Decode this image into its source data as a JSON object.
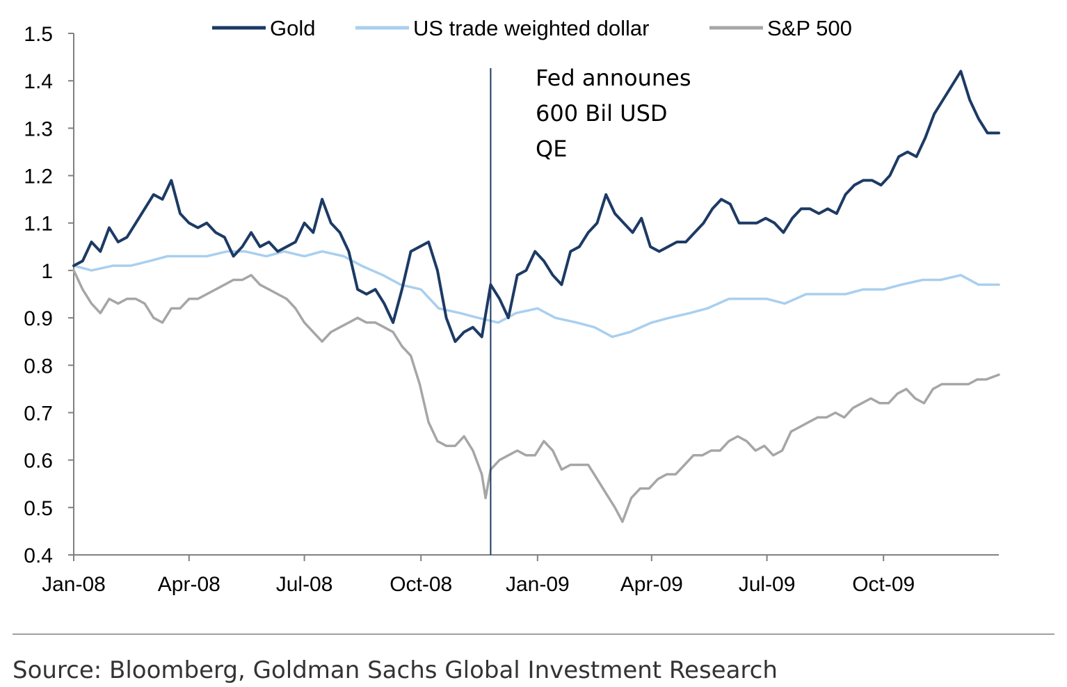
{
  "chart_data": {
    "type": "line",
    "x_ticks": [
      "Jan-08",
      "Apr-08",
      "Jul-08",
      "Oct-08",
      "Jan-09",
      "Apr-09",
      "Jul-09",
      "Oct-09"
    ],
    "y_ticks": [
      "0.4",
      "0.5",
      "0.6",
      "0.7",
      "0.8",
      "0.9",
      "1",
      "1.1",
      "1.2",
      "1.3",
      "1.4",
      "1.5"
    ],
    "ylim": [
      0.4,
      1.5
    ],
    "xlim": [
      "2008-01-01",
      "2009-12-31"
    ],
    "grid": false,
    "legend_position": "top",
    "annotation": {
      "date": "2008-11-25",
      "lines": [
        "Fed announes",
        "600 Bil USD",
        "QE"
      ]
    },
    "source": "Source: Bloomberg, Goldman Sachs Global Investment Research",
    "series": [
      {
        "name": "Gold",
        "color": "#1c3a64",
        "points": [
          [
            "2008-01-01",
            1.01
          ],
          [
            "2008-01-08",
            1.02
          ],
          [
            "2008-01-15",
            1.06
          ],
          [
            "2008-01-22",
            1.04
          ],
          [
            "2008-01-29",
            1.09
          ],
          [
            "2008-02-05",
            1.06
          ],
          [
            "2008-02-12",
            1.07
          ],
          [
            "2008-02-19",
            1.1
          ],
          [
            "2008-02-26",
            1.13
          ],
          [
            "2008-03-04",
            1.16
          ],
          [
            "2008-03-11",
            1.15
          ],
          [
            "2008-03-18",
            1.19
          ],
          [
            "2008-03-25",
            1.12
          ],
          [
            "2008-04-01",
            1.1
          ],
          [
            "2008-04-08",
            1.09
          ],
          [
            "2008-04-15",
            1.1
          ],
          [
            "2008-04-22",
            1.08
          ],
          [
            "2008-04-29",
            1.07
          ],
          [
            "2008-05-06",
            1.03
          ],
          [
            "2008-05-13",
            1.05
          ],
          [
            "2008-05-20",
            1.08
          ],
          [
            "2008-05-27",
            1.05
          ],
          [
            "2008-06-03",
            1.06
          ],
          [
            "2008-06-10",
            1.04
          ],
          [
            "2008-06-17",
            1.05
          ],
          [
            "2008-06-24",
            1.06
          ],
          [
            "2008-07-01",
            1.1
          ],
          [
            "2008-07-08",
            1.08
          ],
          [
            "2008-07-15",
            1.15
          ],
          [
            "2008-07-22",
            1.1
          ],
          [
            "2008-07-29",
            1.08
          ],
          [
            "2008-08-05",
            1.04
          ],
          [
            "2008-08-12",
            0.96
          ],
          [
            "2008-08-19",
            0.95
          ],
          [
            "2008-08-26",
            0.96
          ],
          [
            "2008-09-02",
            0.93
          ],
          [
            "2008-09-09",
            0.89
          ],
          [
            "2008-09-16",
            0.96
          ],
          [
            "2008-09-23",
            1.04
          ],
          [
            "2008-09-30",
            1.05
          ],
          [
            "2008-10-07",
            1.06
          ],
          [
            "2008-10-14",
            1.0
          ],
          [
            "2008-10-21",
            0.9
          ],
          [
            "2008-10-28",
            0.85
          ],
          [
            "2008-11-04",
            0.87
          ],
          [
            "2008-11-11",
            0.88
          ],
          [
            "2008-11-18",
            0.86
          ],
          [
            "2008-11-25",
            0.97
          ],
          [
            "2008-12-02",
            0.94
          ],
          [
            "2008-12-09",
            0.9
          ],
          [
            "2008-12-16",
            0.99
          ],
          [
            "2008-12-23",
            1.0
          ],
          [
            "2008-12-30",
            1.04
          ],
          [
            "2009-01-06",
            1.02
          ],
          [
            "2009-01-13",
            0.99
          ],
          [
            "2009-01-20",
            0.97
          ],
          [
            "2009-01-27",
            1.04
          ],
          [
            "2009-02-03",
            1.05
          ],
          [
            "2009-02-10",
            1.08
          ],
          [
            "2009-02-17",
            1.1
          ],
          [
            "2009-02-24",
            1.16
          ],
          [
            "2009-03-03",
            1.12
          ],
          [
            "2009-03-10",
            1.1
          ],
          [
            "2009-03-17",
            1.08
          ],
          [
            "2009-03-24",
            1.11
          ],
          [
            "2009-03-31",
            1.05
          ],
          [
            "2009-04-07",
            1.04
          ],
          [
            "2009-04-14",
            1.05
          ],
          [
            "2009-04-21",
            1.06
          ],
          [
            "2009-04-28",
            1.06
          ],
          [
            "2009-05-05",
            1.08
          ],
          [
            "2009-05-12",
            1.1
          ],
          [
            "2009-05-19",
            1.13
          ],
          [
            "2009-05-26",
            1.15
          ],
          [
            "2009-06-02",
            1.14
          ],
          [
            "2009-06-09",
            1.1
          ],
          [
            "2009-06-16",
            1.1
          ],
          [
            "2009-06-23",
            1.1
          ],
          [
            "2009-06-30",
            1.11
          ],
          [
            "2009-07-07",
            1.1
          ],
          [
            "2009-07-14",
            1.08
          ],
          [
            "2009-07-21",
            1.11
          ],
          [
            "2009-07-28",
            1.13
          ],
          [
            "2009-08-04",
            1.13
          ],
          [
            "2009-08-11",
            1.12
          ],
          [
            "2009-08-18",
            1.13
          ],
          [
            "2009-08-25",
            1.12
          ],
          [
            "2009-09-01",
            1.16
          ],
          [
            "2009-09-08",
            1.18
          ],
          [
            "2009-09-15",
            1.19
          ],
          [
            "2009-09-22",
            1.19
          ],
          [
            "2009-09-29",
            1.18
          ],
          [
            "2009-10-06",
            1.2
          ],
          [
            "2009-10-13",
            1.24
          ],
          [
            "2009-10-20",
            1.25
          ],
          [
            "2009-10-27",
            1.24
          ],
          [
            "2009-11-03",
            1.28
          ],
          [
            "2009-11-10",
            1.33
          ],
          [
            "2009-11-17",
            1.36
          ],
          [
            "2009-11-24",
            1.39
          ],
          [
            "2009-12-01",
            1.42
          ],
          [
            "2009-12-08",
            1.36
          ],
          [
            "2009-12-15",
            1.32
          ],
          [
            "2009-12-22",
            1.29
          ],
          [
            "2009-12-31",
            1.29
          ]
        ]
      },
      {
        "name": "US trade weighted dollar",
        "color": "#a9cfee",
        "points": [
          [
            "2008-01-01",
            1.01
          ],
          [
            "2008-01-15",
            1.0
          ],
          [
            "2008-02-01",
            1.01
          ],
          [
            "2008-02-15",
            1.01
          ],
          [
            "2008-03-01",
            1.02
          ],
          [
            "2008-03-15",
            1.03
          ],
          [
            "2008-04-01",
            1.03
          ],
          [
            "2008-04-15",
            1.03
          ],
          [
            "2008-05-01",
            1.04
          ],
          [
            "2008-05-15",
            1.04
          ],
          [
            "2008-06-01",
            1.03
          ],
          [
            "2008-06-15",
            1.04
          ],
          [
            "2008-07-01",
            1.03
          ],
          [
            "2008-07-15",
            1.04
          ],
          [
            "2008-08-01",
            1.03
          ],
          [
            "2008-08-15",
            1.01
          ],
          [
            "2008-09-01",
            0.99
          ],
          [
            "2008-09-15",
            0.97
          ],
          [
            "2008-10-01",
            0.96
          ],
          [
            "2008-10-15",
            0.92
          ],
          [
            "2008-11-01",
            0.91
          ],
          [
            "2008-11-15",
            0.9
          ],
          [
            "2008-12-01",
            0.89
          ],
          [
            "2008-12-15",
            0.91
          ],
          [
            "2009-01-01",
            0.92
          ],
          [
            "2009-01-15",
            0.9
          ],
          [
            "2009-02-01",
            0.89
          ],
          [
            "2009-02-15",
            0.88
          ],
          [
            "2009-03-01",
            0.86
          ],
          [
            "2009-03-15",
            0.87
          ],
          [
            "2009-04-01",
            0.89
          ],
          [
            "2009-04-15",
            0.9
          ],
          [
            "2009-05-01",
            0.91
          ],
          [
            "2009-05-15",
            0.92
          ],
          [
            "2009-06-01",
            0.94
          ],
          [
            "2009-06-15",
            0.94
          ],
          [
            "2009-07-01",
            0.94
          ],
          [
            "2009-07-15",
            0.93
          ],
          [
            "2009-08-01",
            0.95
          ],
          [
            "2009-08-15",
            0.95
          ],
          [
            "2009-09-01",
            0.95
          ],
          [
            "2009-09-15",
            0.96
          ],
          [
            "2009-10-01",
            0.96
          ],
          [
            "2009-10-15",
            0.97
          ],
          [
            "2009-11-01",
            0.98
          ],
          [
            "2009-11-15",
            0.98
          ],
          [
            "2009-12-01",
            0.99
          ],
          [
            "2009-12-15",
            0.97
          ],
          [
            "2009-12-31",
            0.97
          ]
        ]
      },
      {
        "name": "S&P 500",
        "color": "#a6a6a6",
        "points": [
          [
            "2008-01-01",
            1.0
          ],
          [
            "2008-01-08",
            0.96
          ],
          [
            "2008-01-15",
            0.93
          ],
          [
            "2008-01-22",
            0.91
          ],
          [
            "2008-01-29",
            0.94
          ],
          [
            "2008-02-05",
            0.93
          ],
          [
            "2008-02-12",
            0.94
          ],
          [
            "2008-02-19",
            0.94
          ],
          [
            "2008-02-26",
            0.93
          ],
          [
            "2008-03-04",
            0.9
          ],
          [
            "2008-03-11",
            0.89
          ],
          [
            "2008-03-18",
            0.92
          ],
          [
            "2008-03-25",
            0.92
          ],
          [
            "2008-04-01",
            0.94
          ],
          [
            "2008-04-08",
            0.94
          ],
          [
            "2008-04-15",
            0.95
          ],
          [
            "2008-04-22",
            0.96
          ],
          [
            "2008-04-29",
            0.97
          ],
          [
            "2008-05-06",
            0.98
          ],
          [
            "2008-05-13",
            0.98
          ],
          [
            "2008-05-20",
            0.99
          ],
          [
            "2008-05-27",
            0.97
          ],
          [
            "2008-06-03",
            0.96
          ],
          [
            "2008-06-10",
            0.95
          ],
          [
            "2008-06-17",
            0.94
          ],
          [
            "2008-06-24",
            0.92
          ],
          [
            "2008-07-01",
            0.89
          ],
          [
            "2008-07-08",
            0.87
          ],
          [
            "2008-07-15",
            0.85
          ],
          [
            "2008-07-22",
            0.87
          ],
          [
            "2008-07-29",
            0.88
          ],
          [
            "2008-08-05",
            0.89
          ],
          [
            "2008-08-12",
            0.9
          ],
          [
            "2008-08-19",
            0.89
          ],
          [
            "2008-08-26",
            0.89
          ],
          [
            "2008-09-02",
            0.88
          ],
          [
            "2008-09-09",
            0.87
          ],
          [
            "2008-09-16",
            0.84
          ],
          [
            "2008-09-23",
            0.82
          ],
          [
            "2008-09-30",
            0.76
          ],
          [
            "2008-10-07",
            0.68
          ],
          [
            "2008-10-14",
            0.64
          ],
          [
            "2008-10-21",
            0.63
          ],
          [
            "2008-10-28",
            0.63
          ],
          [
            "2008-11-04",
            0.65
          ],
          [
            "2008-11-11",
            0.62
          ],
          [
            "2008-11-18",
            0.57
          ],
          [
            "2008-11-21",
            0.52
          ],
          [
            "2008-11-25",
            0.58
          ],
          [
            "2008-12-02",
            0.6
          ],
          [
            "2008-12-09",
            0.61
          ],
          [
            "2008-12-16",
            0.62
          ],
          [
            "2008-12-23",
            0.61
          ],
          [
            "2008-12-30",
            0.61
          ],
          [
            "2009-01-06",
            0.64
          ],
          [
            "2009-01-13",
            0.62
          ],
          [
            "2009-01-20",
            0.58
          ],
          [
            "2009-01-27",
            0.59
          ],
          [
            "2009-02-03",
            0.59
          ],
          [
            "2009-02-10",
            0.59
          ],
          [
            "2009-02-17",
            0.56
          ],
          [
            "2009-02-24",
            0.53
          ],
          [
            "2009-03-03",
            0.5
          ],
          [
            "2009-03-09",
            0.47
          ],
          [
            "2009-03-16",
            0.52
          ],
          [
            "2009-03-23",
            0.54
          ],
          [
            "2009-03-30",
            0.54
          ],
          [
            "2009-04-06",
            0.56
          ],
          [
            "2009-04-13",
            0.57
          ],
          [
            "2009-04-20",
            0.57
          ],
          [
            "2009-04-27",
            0.59
          ],
          [
            "2009-05-04",
            0.61
          ],
          [
            "2009-05-11",
            0.61
          ],
          [
            "2009-05-18",
            0.62
          ],
          [
            "2009-05-25",
            0.62
          ],
          [
            "2009-06-01",
            0.64
          ],
          [
            "2009-06-08",
            0.65
          ],
          [
            "2009-06-15",
            0.64
          ],
          [
            "2009-06-22",
            0.62
          ],
          [
            "2009-06-29",
            0.63
          ],
          [
            "2009-07-06",
            0.61
          ],
          [
            "2009-07-13",
            0.62
          ],
          [
            "2009-07-20",
            0.66
          ],
          [
            "2009-07-27",
            0.67
          ],
          [
            "2009-08-03",
            0.68
          ],
          [
            "2009-08-10",
            0.69
          ],
          [
            "2009-08-17",
            0.69
          ],
          [
            "2009-08-24",
            0.7
          ],
          [
            "2009-08-31",
            0.69
          ],
          [
            "2009-09-07",
            0.71
          ],
          [
            "2009-09-14",
            0.72
          ],
          [
            "2009-09-21",
            0.73
          ],
          [
            "2009-09-28",
            0.72
          ],
          [
            "2009-10-05",
            0.72
          ],
          [
            "2009-10-12",
            0.74
          ],
          [
            "2009-10-19",
            0.75
          ],
          [
            "2009-10-26",
            0.73
          ],
          [
            "2009-11-02",
            0.72
          ],
          [
            "2009-11-09",
            0.75
          ],
          [
            "2009-11-16",
            0.76
          ],
          [
            "2009-11-23",
            0.76
          ],
          [
            "2009-11-30",
            0.76
          ],
          [
            "2009-12-07",
            0.76
          ],
          [
            "2009-12-14",
            0.77
          ],
          [
            "2009-12-21",
            0.77
          ],
          [
            "2009-12-31",
            0.78
          ]
        ]
      }
    ]
  }
}
